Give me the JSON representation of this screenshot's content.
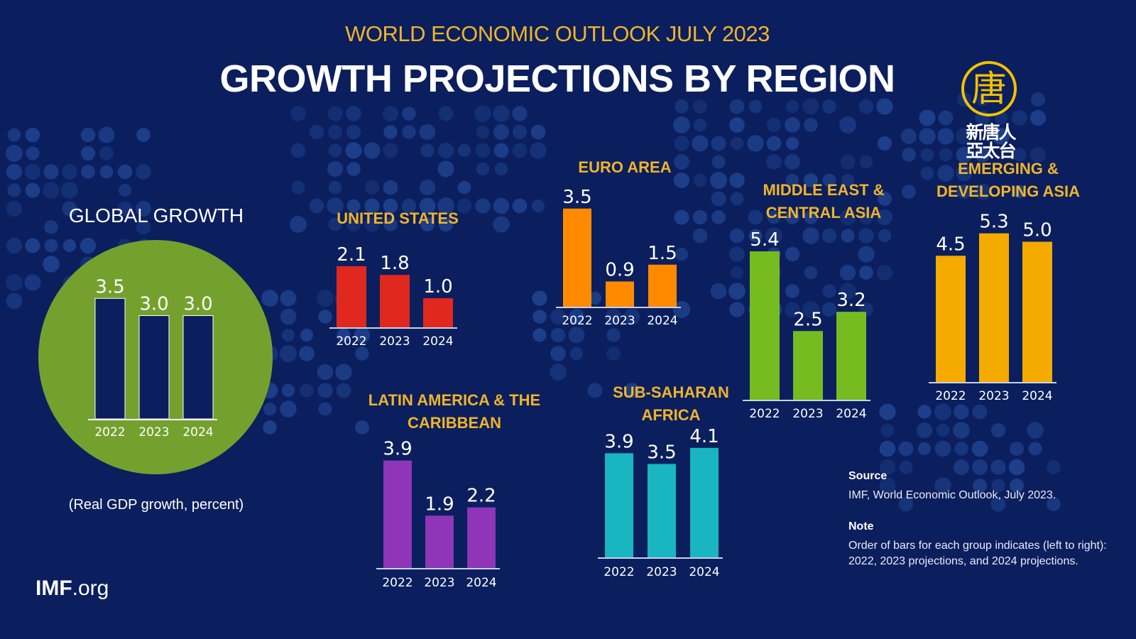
{
  "header": {
    "subtitle": "WORLD ECONOMIC OUTLOOK JULY 2023",
    "title": "GROWTH PROJECTIONS BY REGION"
  },
  "logo": {
    "glyph": "唐",
    "line1": "新唐人",
    "line2": "亞太台"
  },
  "global": {
    "title": "GLOBAL GROWTH",
    "note": "(Real GDP growth, percent)"
  },
  "footer": {
    "imf_bold": "IMF",
    "imf_rest": ".org"
  },
  "source": {
    "source_heading": "Source",
    "source_text": "IMF, World Economic Outlook, July 2023.",
    "note_heading": "Note",
    "note_text": "Order of bars for each group indicates (left to right): 2022, 2023 projections, and 2024 projections."
  },
  "colors": {
    "background": "#0b1f5e",
    "title_gold": "#f0b429",
    "global_circle": "#74a12e",
    "global_bars": "#0b1f5e",
    "united_states": "#e0281e",
    "euro_area": "#ff8a00",
    "middle_east": "#76bc21",
    "emerging_asia": "#f5aa00",
    "latin_america": "#8e35b8",
    "sub_saharan": "#19b5c0"
  },
  "chart_data": [
    {
      "type": "bar",
      "id": "global",
      "title": "GLOBAL GROWTH",
      "categories": [
        "2022",
        "2023",
        "2024"
      ],
      "values": [
        3.5,
        3.0,
        3.0
      ],
      "labels": [
        "3.5",
        "3.0",
        "3.0"
      ],
      "color": "#0b1f5e",
      "ylabel": "Real GDP growth, percent"
    },
    {
      "type": "bar",
      "id": "united-states",
      "title": "UNITED STATES",
      "categories": [
        "2022",
        "2023",
        "2024"
      ],
      "values": [
        2.1,
        1.8,
        1.0
      ],
      "labels": [
        "2.1",
        "1.8",
        "1.0"
      ],
      "color": "#e0281e"
    },
    {
      "type": "bar",
      "id": "euro-area",
      "title": "EURO AREA",
      "categories": [
        "2022",
        "2023",
        "2024"
      ],
      "values": [
        3.5,
        0.9,
        1.5
      ],
      "labels": [
        "3.5",
        "0.9",
        "1.5"
      ],
      "color": "#ff8a00"
    },
    {
      "type": "bar",
      "id": "middle-east-central-asia",
      "title": "MIDDLE EAST & CENTRAL ASIA",
      "title_lines": [
        "MIDDLE EAST &",
        "CENTRAL ASIA"
      ],
      "categories": [
        "2022",
        "2023",
        "2024"
      ],
      "values": [
        5.4,
        2.5,
        3.2
      ],
      "labels": [
        "5.4",
        "2.5",
        "3.2"
      ],
      "color": "#76bc21"
    },
    {
      "type": "bar",
      "id": "emerging-developing-asia",
      "title": "EMERGING & DEVELOPING ASIA",
      "title_lines": [
        "EMERGING &",
        "DEVELOPING ASIA"
      ],
      "categories": [
        "2022",
        "2023",
        "2024"
      ],
      "values": [
        4.5,
        5.3,
        5.0
      ],
      "labels": [
        "4.5",
        "5.3",
        "5.0"
      ],
      "color": "#f5aa00"
    },
    {
      "type": "bar",
      "id": "latin-america-caribbean",
      "title": "LATIN AMERICA & THE CARIBBEAN",
      "title_lines": [
        "LATIN AMERICA & THE",
        "CARIBBEAN"
      ],
      "categories": [
        "2022",
        "2023",
        "2024"
      ],
      "values": [
        3.9,
        1.9,
        2.2
      ],
      "labels": [
        "3.9",
        "1.9",
        "2.2"
      ],
      "color": "#8e35b8"
    },
    {
      "type": "bar",
      "id": "sub-saharan-africa",
      "title": "SUB-SAHARAN AFRICA",
      "title_lines": [
        "SUB-SAHARAN",
        "AFRICA"
      ],
      "categories": [
        "2022",
        "2023",
        "2024"
      ],
      "values": [
        3.9,
        3.5,
        4.1
      ],
      "labels": [
        "3.9",
        "3.5",
        "4.1"
      ],
      "color": "#19b5c0"
    }
  ]
}
